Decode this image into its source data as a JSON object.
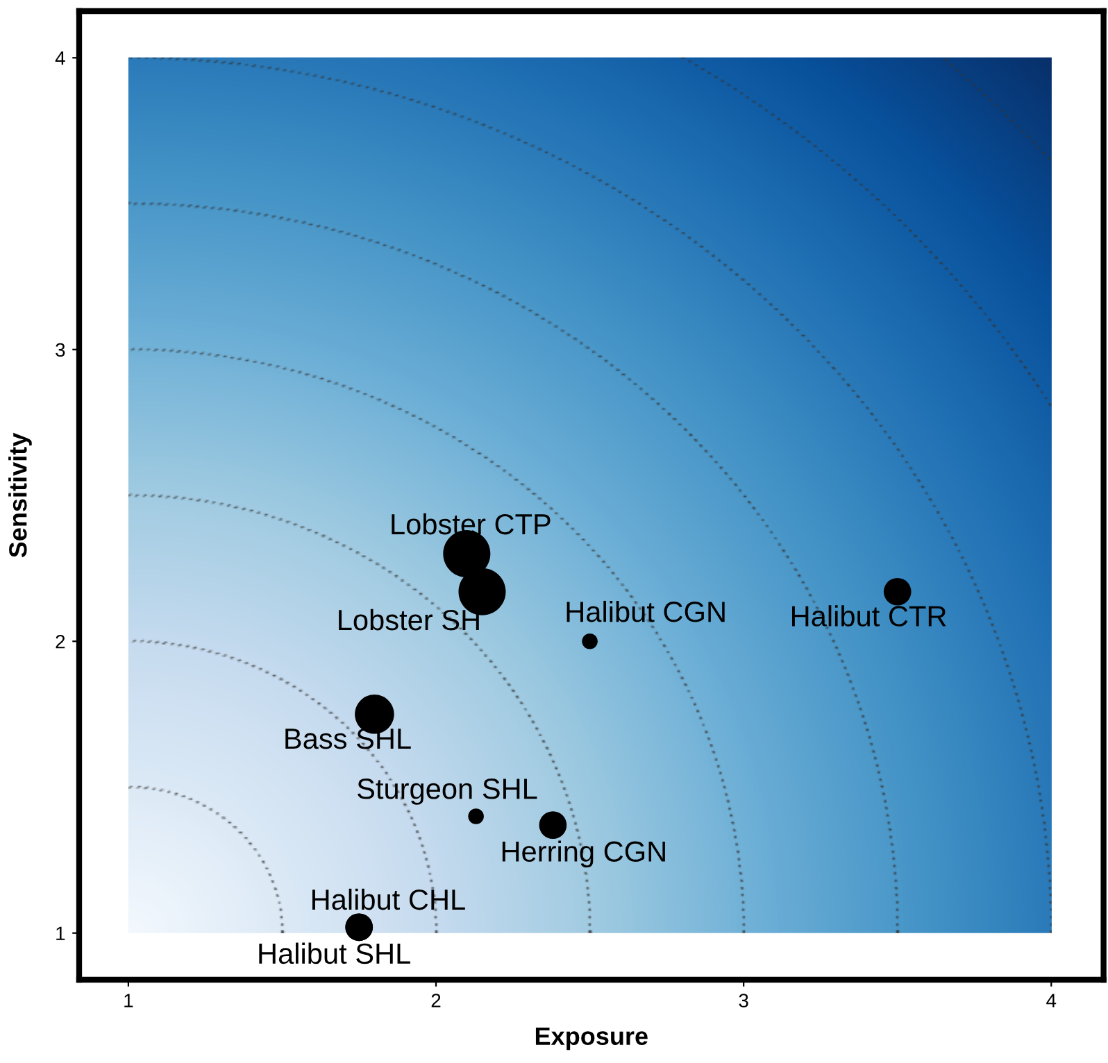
{
  "chart_data": {
    "type": "bubble",
    "xlabel": "Exposure",
    "ylabel": "Sensitivity",
    "xlim": [
      0.84,
      4.17
    ],
    "ylim": [
      0.84,
      4.16
    ],
    "xticks": [
      1,
      2,
      3,
      4
    ],
    "yticks": [
      1,
      2,
      3,
      4
    ],
    "grid": false,
    "legend": false,
    "marker": "circle",
    "series": [
      {
        "name": "Lobster CTP",
        "color": "#000000",
        "x": [
          2.1
        ],
        "values": [
          2.3
        ],
        "sizes": [
          1
        ]
      },
      {
        "name": "Lobster SH",
        "color": "#000000",
        "x": [
          2.15
        ],
        "values": [
          2.17
        ],
        "sizes": [
          1
        ]
      },
      {
        "name": "Halibut CGN",
        "color": "#000000",
        "x": [
          2.5
        ],
        "values": [
          2.0
        ],
        "sizes": [
          0.11
        ]
      },
      {
        "name": "Halibut CTR",
        "color": "#000000",
        "x": [
          3.5
        ],
        "values": [
          2.17
        ],
        "sizes": [
          0.34
        ]
      },
      {
        "name": "Bass SHL",
        "color": "#000000",
        "x": [
          1.8
        ],
        "values": [
          1.75
        ],
        "sizes": [
          0.69
        ]
      },
      {
        "name": "Sturgeon SHL",
        "color": "#000000",
        "x": [
          2.13
        ],
        "values": [
          1.4
        ],
        "sizes": [
          0.11
        ]
      },
      {
        "name": "Herring CGN",
        "color": "#000000",
        "x": [
          2.38
        ],
        "values": [
          1.37
        ],
        "sizes": [
          0.34
        ]
      },
      {
        "name": "Halibut CHL",
        "color": "#000000",
        "x": [
          1.75
        ],
        "values": [
          1.02
        ],
        "sizes": [
          0.34
        ]
      },
      {
        "name": "Halibut SHL",
        "color": "#000000",
        "x": [
          1.75
        ],
        "values": [
          1.02
        ],
        "sizes": [
          0.34
        ]
      }
    ]
  }
}
